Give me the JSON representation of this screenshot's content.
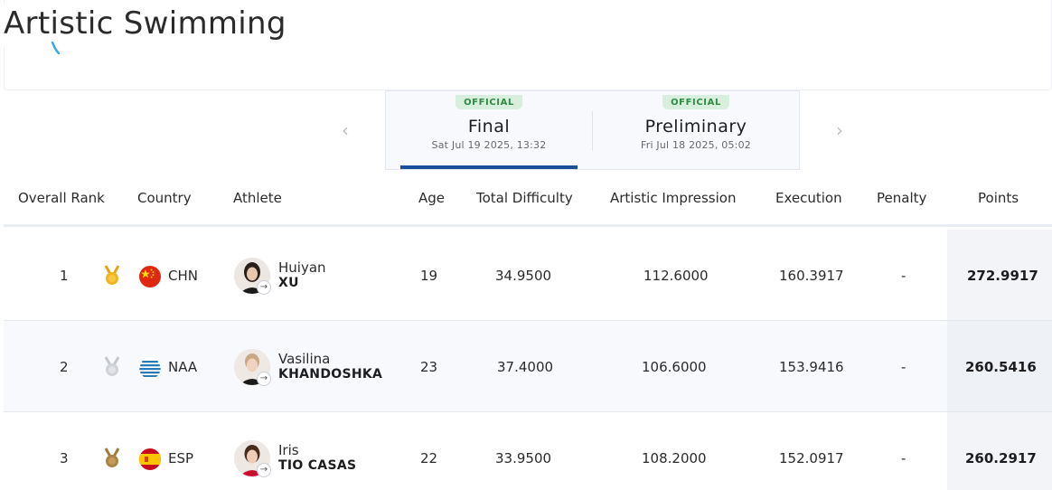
{
  "page": {
    "title": "Artistic Swimming"
  },
  "navigation": {
    "prev_arrow": "‹",
    "next_arrow": "›"
  },
  "tabs": [
    {
      "badge": "OFFICIAL",
      "label": "Final",
      "date": "Sat Jul 19 2025, 13:32",
      "active": true
    },
    {
      "badge": "OFFICIAL",
      "label": "Preliminary",
      "date": "Fri Jul 18 2025, 05:02",
      "active": false
    }
  ],
  "table": {
    "columns": [
      "Overall Rank",
      "Country",
      "Athlete",
      "Age",
      "Total Difficulty",
      "Artistic Impression",
      "Execution",
      "Penalty",
      "Points"
    ],
    "rows": [
      {
        "rank": "1",
        "medal": "gold-medal-icon",
        "flag": "china-flag-icon",
        "country": "CHN",
        "first_name": "Huiyan",
        "last_name": "XU",
        "age": "19",
        "total_difficulty": "34.9500",
        "artistic_impression": "112.6000",
        "execution": "160.3917",
        "penalty": "-",
        "points": "272.9917"
      },
      {
        "rank": "2",
        "medal": "silver-medal-icon",
        "flag": "neutral-athletes-flag-icon",
        "country": "NAA",
        "first_name": "Vasilina",
        "last_name": "KHANDOSHKA",
        "age": "23",
        "total_difficulty": "37.4000",
        "artistic_impression": "106.6000",
        "execution": "153.9416",
        "penalty": "-",
        "points": "260.5416"
      },
      {
        "rank": "3",
        "medal": "bronze-medal-icon",
        "flag": "spain-flag-icon",
        "country": "ESP",
        "first_name": "Iris",
        "last_name": "TIO CASAS",
        "age": "22",
        "total_difficulty": "33.9500",
        "artistic_impression": "108.2000",
        "execution": "152.0917",
        "penalty": "-",
        "points": "260.2917"
      }
    ]
  },
  "colors": {
    "accent": "#1b4f9a",
    "badge_bg": "#d9efdd",
    "badge_text": "#2f8a46",
    "gold": "#e8a317",
    "silver": "#c4c7cc",
    "bronze": "#a07a3c"
  }
}
